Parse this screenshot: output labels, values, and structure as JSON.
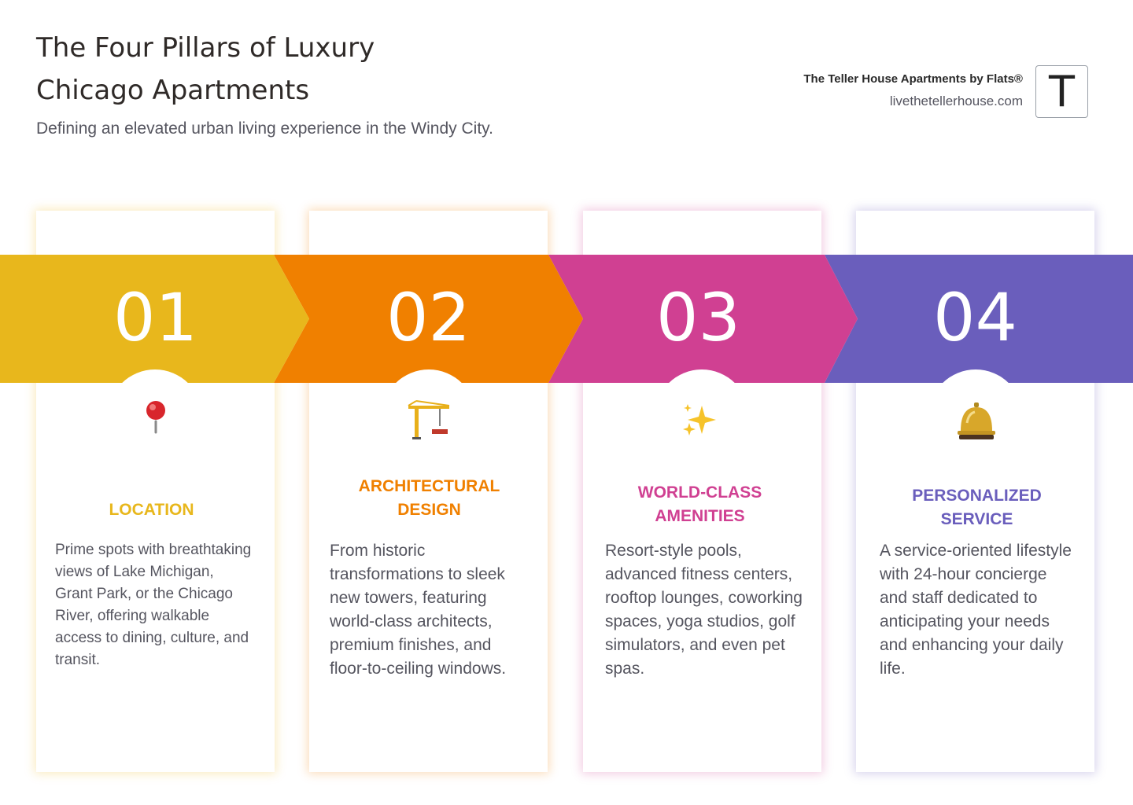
{
  "header": {
    "title_line1": "The Four Pillars of Luxury",
    "title_line2": "Chicago Apartments",
    "subtitle": "Defining an elevated urban living experience in the Windy City."
  },
  "brand": {
    "name": "The Teller House Apartments by Flats®",
    "url": "livethetellerhouse.com",
    "logo_letter": "T"
  },
  "colors": {
    "pillar1": "#E8B71C",
    "pillar2": "#F08000",
    "pillar3": "#D04092",
    "pillar4": "#6A5EBC"
  },
  "pillars": [
    {
      "number": "01",
      "icon": "pushpin-icon",
      "heading_line1": "LOCATION",
      "heading_line2": "",
      "description": "Prime spots with breathtaking views of Lake Michigan, Grant Park, or the Chicago River, offering walkable access to dining, culture, and transit."
    },
    {
      "number": "02",
      "icon": "construction-crane-icon",
      "heading_line1": "ARCHITECTURAL",
      "heading_line2": "DESIGN",
      "description": "From historic transformations to sleek new towers, featuring world-class architects, premium finishes, and floor-to-ceiling windows."
    },
    {
      "number": "03",
      "icon": "sparkles-icon",
      "heading_line1": "WORLD-CLASS",
      "heading_line2": "AMENITIES",
      "description": "Resort-style pools, advanced fitness centers, rooftop lounges, coworking spaces, yoga studios, golf simulators, and even pet spas."
    },
    {
      "number": "04",
      "icon": "bellhop-bell-icon",
      "heading_line1": "PERSONALIZED",
      "heading_line2": "SERVICE",
      "description": "A service-oriented lifestyle with 24-hour concierge and staff dedicated to anticipating your needs and enhancing your daily life."
    }
  ]
}
